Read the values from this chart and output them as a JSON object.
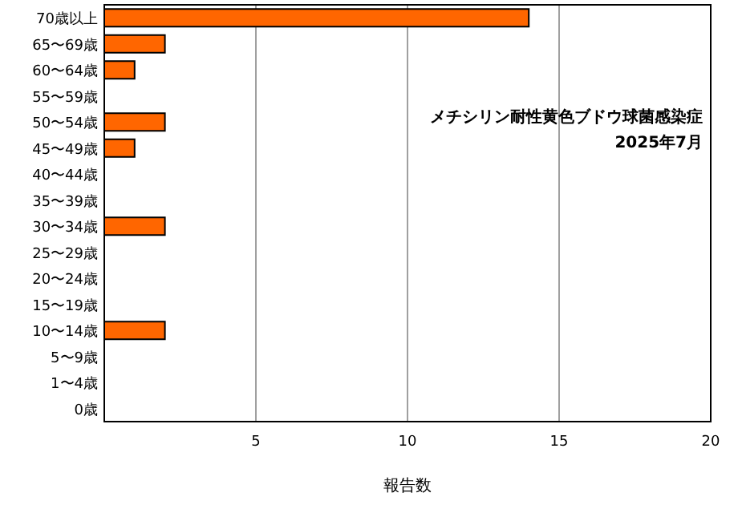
{
  "chart_data": {
    "type": "bar",
    "orientation": "horizontal",
    "categories": [
      "70歳以上",
      "65〜69歳",
      "60〜64歳",
      "55〜59歳",
      "50〜54歳",
      "45〜49歳",
      "40〜44歳",
      "35〜39歳",
      "30〜34歳",
      "25〜29歳",
      "20〜24歳",
      "15〜19歳",
      "10〜14歳",
      "5〜9歳",
      "1〜4歳",
      "0歳"
    ],
    "values": [
      14,
      2,
      1,
      0,
      2,
      1,
      0,
      0,
      2,
      0,
      0,
      0,
      2,
      0,
      0,
      0
    ],
    "color": "#ff6600",
    "xlim": [
      0,
      20
    ],
    "xticks": [
      5,
      10,
      15,
      20
    ],
    "grid": "x",
    "xlabel": "報告数",
    "annotations": [
      "メチシリン耐性黄色ブドウ球菌感染症",
      "2025年7月"
    ]
  }
}
